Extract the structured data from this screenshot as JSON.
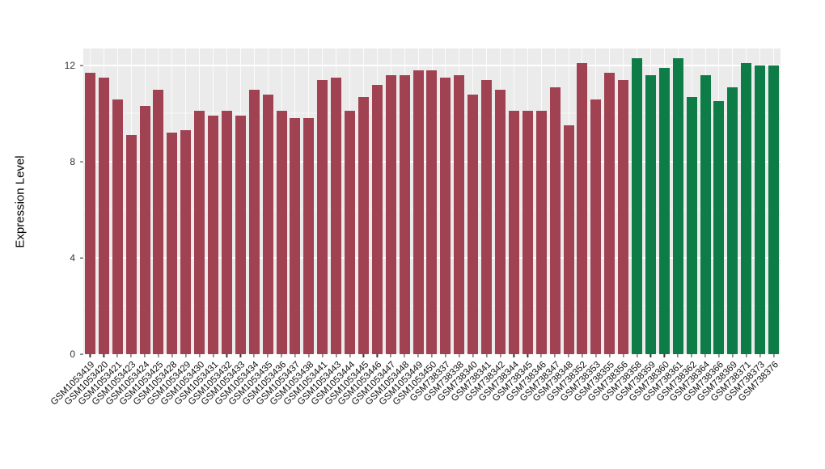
{
  "chart_data": {
    "type": "bar",
    "title": "",
    "ylabel": "Expression Level",
    "xlabel": "",
    "ylim": [
      0,
      12.7
    ],
    "yticks": [
      0,
      4,
      8,
      12
    ],
    "yticks_minor": [
      2,
      6,
      10
    ],
    "grid": "on",
    "legend_position": "none",
    "panel_background": "#EBEBEB",
    "gridline_color": "#FFFFFF",
    "group_split_index": 40,
    "group_colors": [
      "#A04252",
      "#0E7C46"
    ],
    "categories": [
      "GSM1053419",
      "GSM1053420",
      "GSM1053421",
      "GSM1053423",
      "GSM1053424",
      "GSM1053425",
      "GSM1053428",
      "GSM1053429",
      "GSM1053430",
      "GSM1053431",
      "GSM1053432",
      "GSM1053433",
      "GSM1053434",
      "GSM1053435",
      "GSM1053436",
      "GSM1053437",
      "GSM1053438",
      "GSM1053441",
      "GSM1053443",
      "GSM1053444",
      "GSM1053445",
      "GSM1053446",
      "GSM1053447",
      "GSM1053448",
      "GSM1053449",
      "GSM1053450",
      "GSM738337",
      "GSM738338",
      "GSM738340",
      "GSM738341",
      "GSM738342",
      "GSM738344",
      "GSM738345",
      "GSM738346",
      "GSM738347",
      "GSM738348",
      "GSM738352",
      "GSM738353",
      "GSM738355",
      "GSM738356",
      "GSM738358",
      "GSM738359",
      "GSM738360",
      "GSM738361",
      "GSM738362",
      "GSM738364",
      "GSM738366",
      "GSM738369",
      "GSM738371",
      "GSM738373",
      "GSM738376"
    ],
    "values": [
      11.7,
      11.5,
      10.6,
      9.1,
      10.3,
      11.0,
      9.2,
      9.3,
      10.1,
      9.9,
      10.1,
      9.9,
      11.0,
      10.8,
      10.1,
      9.8,
      9.8,
      11.4,
      11.5,
      10.1,
      10.7,
      11.2,
      11.6,
      11.6,
      11.8,
      11.8,
      11.5,
      11.6,
      10.8,
      11.4,
      11.0,
      10.1,
      10.1,
      10.1,
      11.1,
      9.5,
      12.1,
      10.6,
      11.7,
      11.4,
      12.3,
      11.6,
      11.9,
      12.3,
      10.7,
      11.6,
      10.5,
      11.1,
      12.1,
      12.0,
      12.0
    ]
  }
}
